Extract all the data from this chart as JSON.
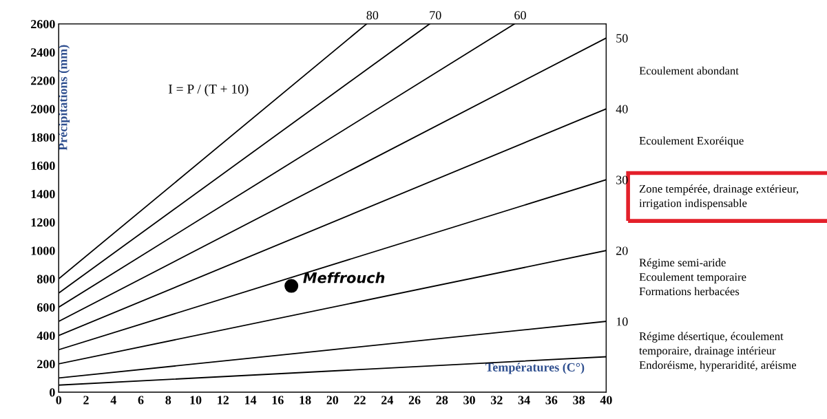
{
  "chart_data": {
    "type": "line",
    "xlabel": "Températures (C°)",
    "ylabel": "Précipitations (mm)",
    "xlim": [
      0,
      40
    ],
    "xticks": [
      0,
      2,
      4,
      6,
      8,
      10,
      12,
      14,
      16,
      18,
      20,
      22,
      24,
      26,
      28,
      30,
      32,
      34,
      36,
      38,
      40
    ],
    "ylim": [
      0,
      2600
    ],
    "yticks": [
      0,
      200,
      400,
      600,
      800,
      1000,
      1200,
      1400,
      1600,
      1800,
      2000,
      2200,
      2400,
      2600
    ],
    "y2lim": [
      0,
      52
    ],
    "y2ticks": [
      10,
      20,
      30,
      40,
      50
    ],
    "grid": false,
    "legend": false,
    "marker": "none",
    "line_style": "solid",
    "series": [
      {
        "color": "#000000",
        "x": [
          0,
          40
        ],
        "values": [
          50,
          250
        ]
      },
      {
        "color": "#000000",
        "x": [
          0,
          40
        ],
        "values": [
          100,
          500
        ]
      },
      {
        "color": "#000000",
        "x": [
          0,
          40
        ],
        "values": [
          200,
          1000
        ]
      },
      {
        "color": "#000000",
        "x": [
          0,
          40
        ],
        "values": [
          300,
          1500
        ]
      },
      {
        "color": "#000000",
        "x": [
          0,
          40
        ],
        "values": [
          400,
          2000
        ]
      },
      {
        "color": "#000000",
        "x": [
          0,
          40
        ],
        "values": [
          500,
          2500
        ]
      },
      {
        "color": "#000000",
        "x": [
          0,
          33.3
        ],
        "values": [
          600,
          2600
        ]
      },
      {
        "color": "#000000",
        "x": [
          0,
          27.1
        ],
        "values": [
          700,
          2600
        ]
      },
      {
        "color": "#000000",
        "x": [
          0,
          22.5
        ],
        "values": [
          800,
          2600
        ]
      },
      {
        "type": "scatter",
        "color": "#000000",
        "marker": "circle",
        "x": [
          17
        ],
        "values": [
          750
        ]
      }
    ],
    "annotations": [
      {
        "text": "80",
        "x": 22.5,
        "y": 2600
      },
      {
        "text": "70",
        "x": 27.1,
        "y": 2600
      },
      {
        "text": "60",
        "x": 33.3,
        "y": 2600
      },
      {
        "text": "Meffrouch",
        "x": 17,
        "y": 750
      },
      "I = P / (T + 10)",
      "Ecoulement abondant",
      "Ecoulement Exoréique",
      "Zone tempérée, drainage extérieur,\nirrigation indispensable",
      "Régime semi-aride\nEcoulement temporaire\nFormations herbacées",
      "Régime désertique, écoulement\ntemporaire, drainage intérieur\nEndoréisme, hyperaridité, aréisme"
    ]
  }
}
